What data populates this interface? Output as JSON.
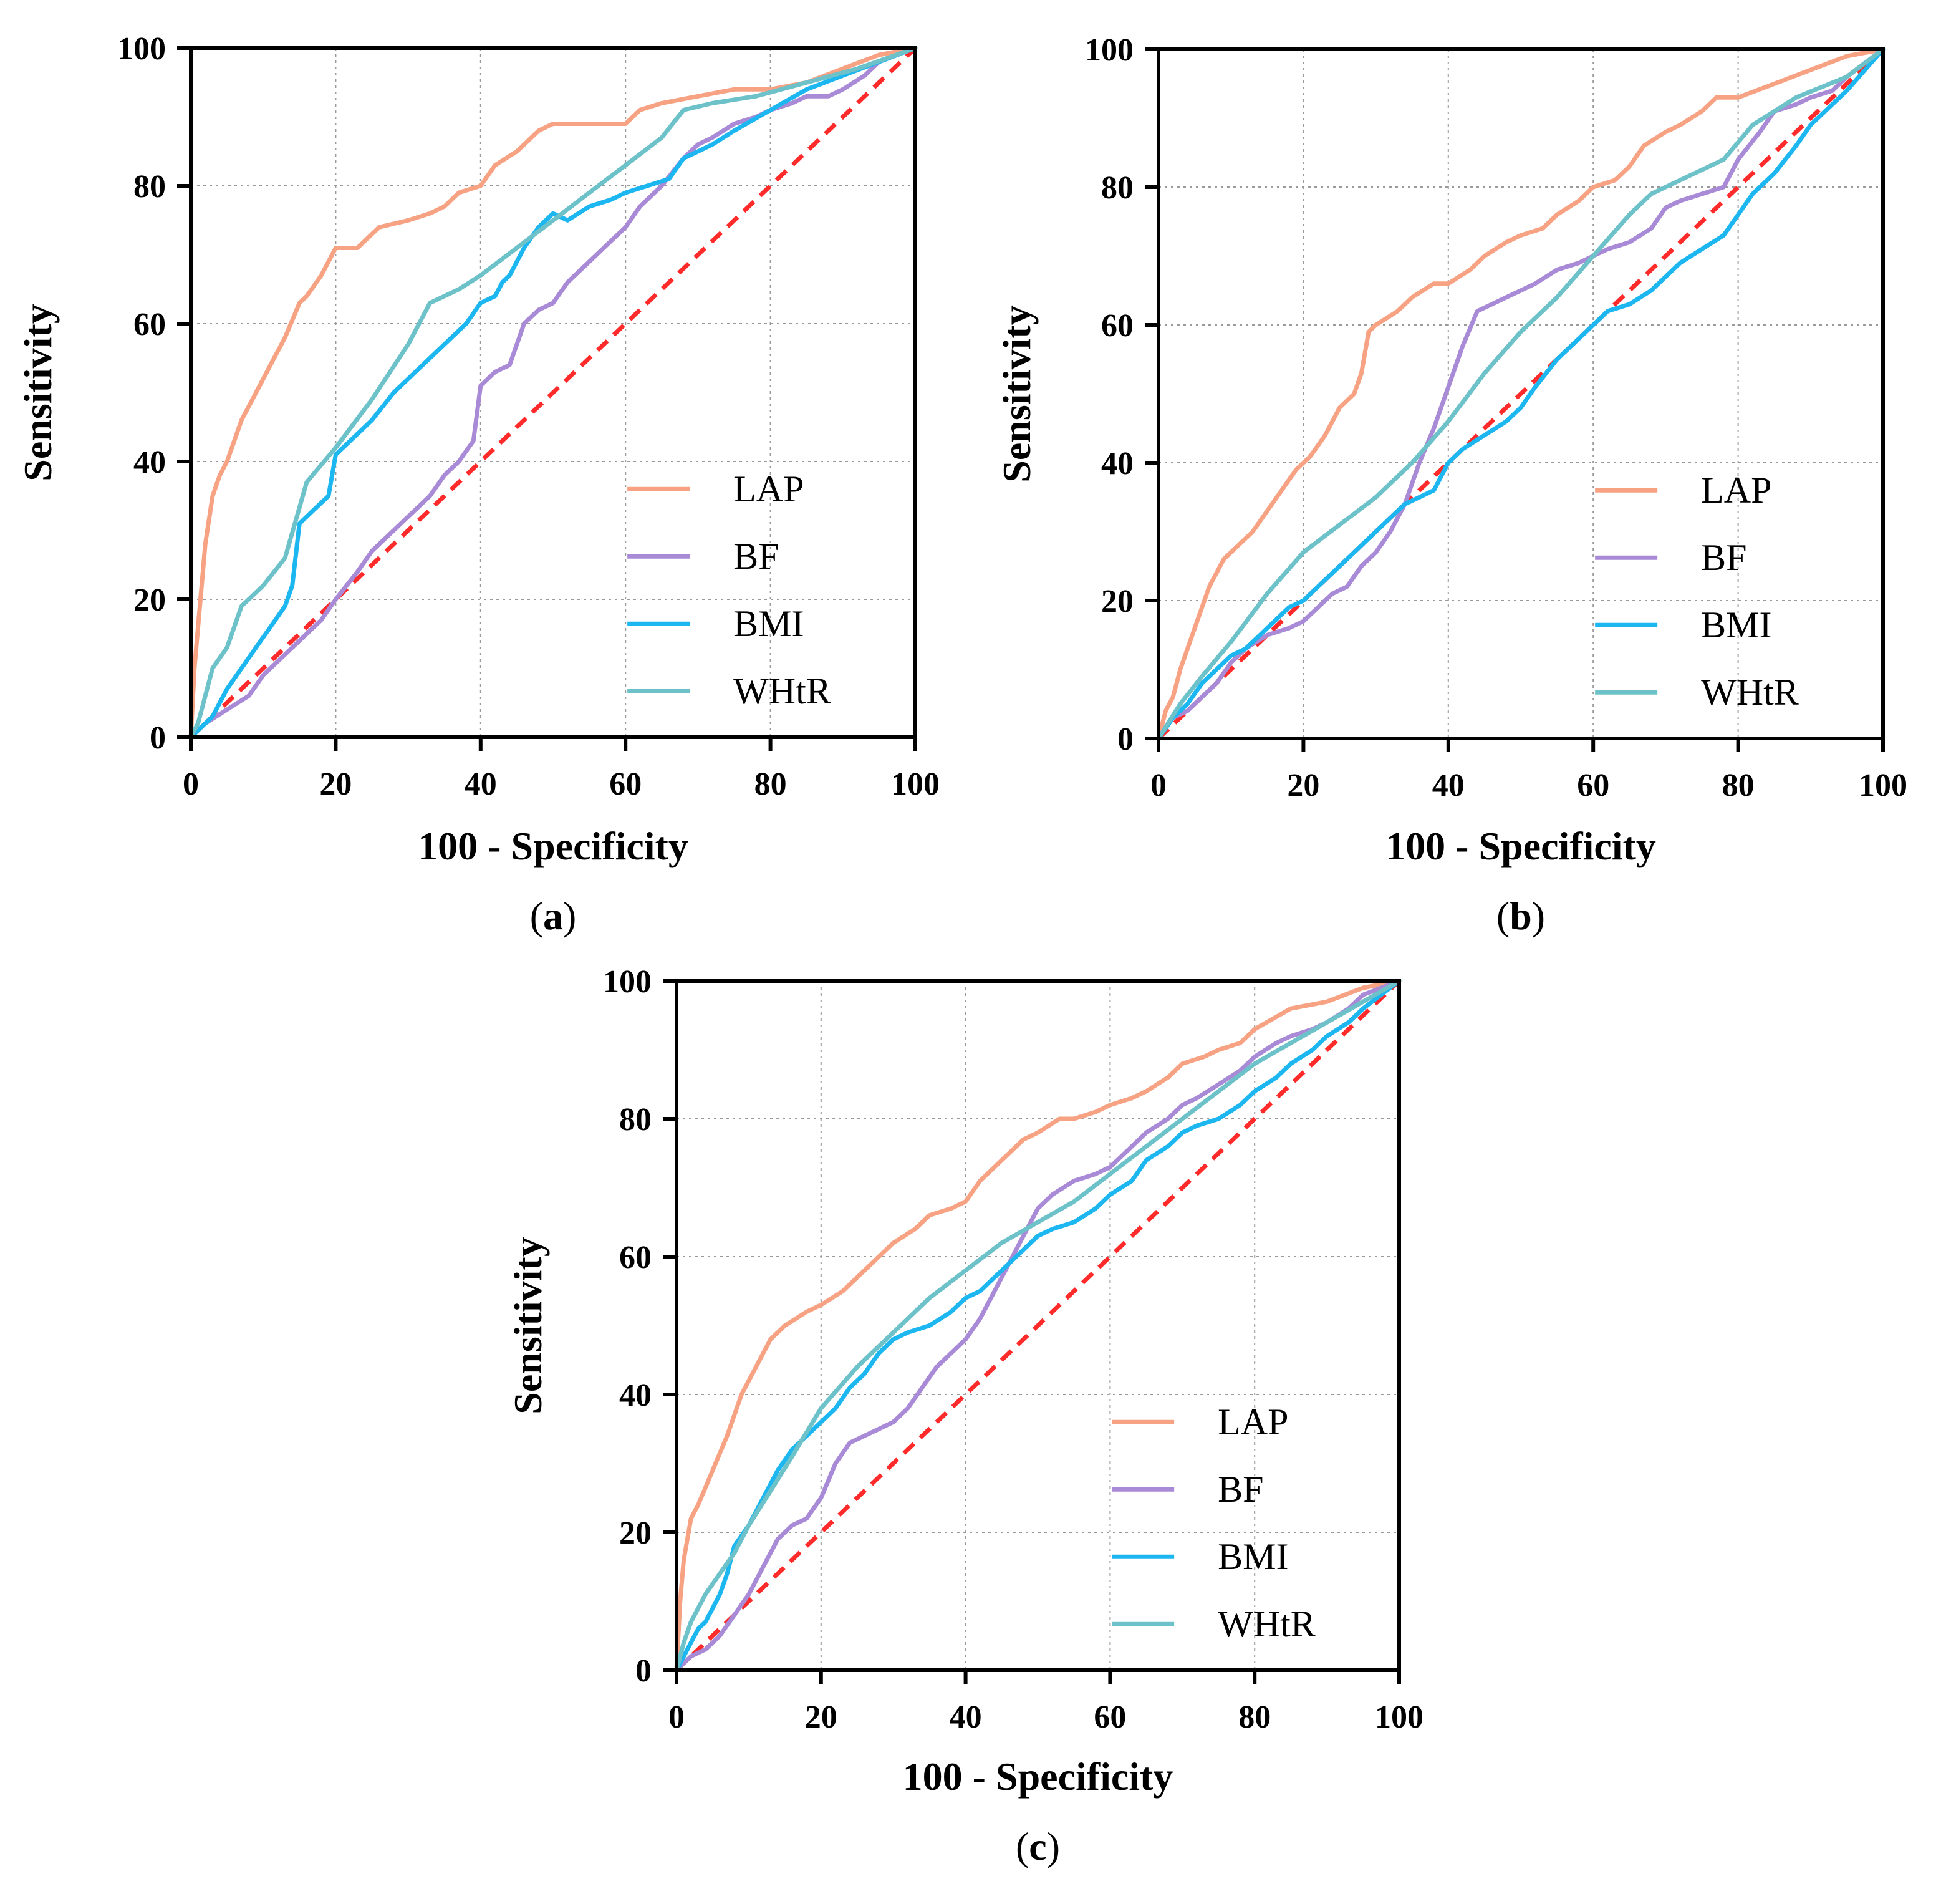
{
  "chart_data": [
    {
      "type": "line",
      "panel_label": "a",
      "xlabel": "100 - Specificity",
      "ylabel": "Sensitivity",
      "xlim": [
        0,
        100
      ],
      "ylim": [
        0,
        100
      ],
      "xticks": [
        0,
        20,
        40,
        60,
        80,
        100
      ],
      "yticks": [
        0,
        20,
        40,
        60,
        80,
        100
      ],
      "grid": true,
      "legend_position": "lower-right",
      "reference_line": {
        "x": [
          0,
          100
        ],
        "y": [
          0,
          100
        ],
        "color": "#ff2a2a",
        "style": "dashed"
      },
      "series": [
        {
          "name": "LAP",
          "color": "#f7a283",
          "x": [
            0,
            0.5,
            1,
            1.5,
            2,
            3,
            4,
            5,
            7,
            9,
            11,
            13,
            15,
            16,
            18,
            20,
            23,
            26,
            30,
            33,
            35,
            37,
            40,
            42,
            45,
            48,
            50,
            52,
            55,
            60,
            62,
            65,
            70,
            75,
            80,
            85,
            90,
            95,
            100
          ],
          "y": [
            0,
            10,
            16,
            22,
            28,
            35,
            38,
            40,
            46,
            50,
            54,
            58,
            63,
            64,
            67,
            71,
            71,
            74,
            75,
            76,
            77,
            79,
            80,
            83,
            85,
            88,
            89,
            89,
            89,
            89,
            91,
            92,
            93,
            94,
            94,
            95,
            97,
            99,
            100
          ]
        },
        {
          "name": "BF",
          "color": "#a98ad6",
          "x": [
            0,
            2,
            5,
            8,
            10,
            12,
            15,
            18,
            20,
            23,
            25,
            28,
            30,
            33,
            35,
            37,
            39,
            40,
            42,
            44,
            46,
            48,
            50,
            52,
            55,
            58,
            60,
            62,
            65,
            68,
            70,
            72,
            75,
            78,
            80,
            83,
            85,
            88,
            90,
            93,
            95,
            100
          ],
          "y": [
            0,
            2,
            4,
            6,
            9,
            11,
            14,
            17,
            20,
            24,
            27,
            30,
            32,
            35,
            38,
            40,
            43,
            51,
            53,
            54,
            60,
            62,
            63,
            66,
            69,
            72,
            74,
            77,
            80,
            84,
            86,
            87,
            89,
            90,
            91,
            92,
            93,
            93,
            94,
            96,
            98,
            100
          ]
        },
        {
          "name": "BMI",
          "color": "#1cb6f0",
          "x": [
            0,
            1,
            3,
            4,
            5,
            7,
            9,
            11,
            13,
            14,
            15,
            17,
            19,
            20,
            22,
            25,
            28,
            31,
            34,
            36,
            38,
            40,
            42,
            43,
            44,
            46,
            48,
            50,
            52,
            55,
            58,
            60,
            63,
            66,
            68,
            70,
            72,
            75,
            80,
            85,
            90,
            95,
            100
          ],
          "y": [
            0,
            1,
            3,
            5,
            7,
            10,
            13,
            16,
            19,
            22,
            31,
            33,
            35,
            41,
            43,
            46,
            50,
            53,
            56,
            58,
            60,
            63,
            64,
            66,
            67,
            71,
            74,
            76,
            75,
            77,
            78,
            79,
            80,
            81,
            84,
            85,
            86,
            88,
            91,
            94,
            96,
            98,
            100
          ]
        },
        {
          "name": "WHtR",
          "color": "#6cc2c8",
          "x": [
            0,
            1,
            3,
            5,
            7,
            10,
            13,
            16,
            20,
            25,
            30,
            33,
            37,
            40,
            45,
            50,
            55,
            60,
            65,
            68,
            72,
            78,
            85,
            92,
            100
          ],
          "y": [
            0,
            2,
            10,
            13,
            19,
            22,
            26,
            37,
            42,
            49,
            57,
            63,
            65,
            67,
            71,
            75,
            79,
            83,
            87,
            91,
            92,
            93,
            95,
            97,
            100
          ]
        }
      ]
    },
    {
      "type": "line",
      "panel_label": "b",
      "xlabel": "100 - Specificity",
      "ylabel": "Sensitivity",
      "xlim": [
        0,
        100
      ],
      "ylim": [
        0,
        100
      ],
      "xticks": [
        0,
        20,
        40,
        60,
        80,
        100
      ],
      "yticks": [
        0,
        20,
        40,
        60,
        80,
        100
      ],
      "grid": true,
      "legend_position": "lower-right",
      "reference_line": {
        "x": [
          0,
          100
        ],
        "y": [
          0,
          100
        ],
        "color": "#ff2a2a",
        "style": "dashed"
      },
      "series": [
        {
          "name": "LAP",
          "color": "#f7a283",
          "x": [
            0,
            1,
            2,
            3,
            5,
            7,
            9,
            11,
            13,
            15,
            17,
            19,
            21,
            23,
            25,
            27,
            28,
            29,
            30,
            33,
            35,
            38,
            40,
            43,
            45,
            48,
            50,
            53,
            55,
            58,
            60,
            63,
            65,
            67,
            70,
            72,
            75,
            77,
            80,
            85,
            90,
            95,
            100
          ],
          "y": [
            0,
            4,
            6,
            10,
            16,
            22,
            26,
            28,
            30,
            33,
            36,
            39,
            41,
            44,
            48,
            50,
            53,
            59,
            60,
            62,
            64,
            66,
            66,
            68,
            70,
            72,
            73,
            74,
            76,
            78,
            80,
            81,
            83,
            86,
            88,
            89,
            91,
            93,
            93,
            95,
            97,
            99,
            100
          ]
        },
        {
          "name": "BF",
          "color": "#a98ad6",
          "x": [
            0,
            2,
            4,
            6,
            8,
            10,
            12,
            15,
            18,
            20,
            22,
            24,
            26,
            28,
            30,
            32,
            34,
            36,
            38,
            40,
            42,
            44,
            46,
            48,
            50,
            52,
            55,
            58,
            60,
            62,
            65,
            68,
            70,
            72,
            75,
            78,
            80,
            83,
            85,
            88,
            90,
            93,
            95,
            100
          ],
          "y": [
            0,
            3,
            4,
            6,
            8,
            11,
            13,
            15,
            16,
            17,
            19,
            21,
            22,
            25,
            27,
            30,
            34,
            40,
            45,
            51,
            57,
            62,
            63,
            64,
            65,
            66,
            68,
            69,
            70,
            71,
            72,
            74,
            77,
            78,
            79,
            80,
            84,
            88,
            91,
            92,
            93,
            94,
            96,
            100
          ]
        },
        {
          "name": "BMI",
          "color": "#1cb6f0",
          "x": [
            0,
            2,
            4,
            6,
            8,
            10,
            12,
            14,
            16,
            18,
            20,
            22,
            24,
            26,
            28,
            30,
            32,
            34,
            36,
            38,
            40,
            42,
            45,
            48,
            50,
            52,
            55,
            58,
            60,
            62,
            65,
            68,
            70,
            72,
            75,
            78,
            80,
            82,
            85,
            88,
            90,
            92,
            95,
            100
          ],
          "y": [
            0,
            3,
            5,
            8,
            10,
            12,
            13,
            15,
            17,
            19,
            20,
            22,
            24,
            26,
            28,
            30,
            32,
            34,
            35,
            36,
            40,
            42,
            44,
            46,
            48,
            51,
            55,
            58,
            60,
            62,
            63,
            65,
            67,
            69,
            71,
            73,
            76,
            79,
            82,
            86,
            89,
            91,
            94,
            100
          ]
        },
        {
          "name": "WHtR",
          "color": "#6cc2c8",
          "x": [
            0,
            3,
            6,
            10,
            15,
            20,
            25,
            30,
            35,
            40,
            45,
            50,
            55,
            60,
            65,
            68,
            72,
            78,
            82,
            88,
            95,
            100
          ],
          "y": [
            0,
            5,
            9,
            14,
            21,
            27,
            31,
            35,
            40,
            46,
            53,
            59,
            64,
            70,
            76,
            79,
            81,
            84,
            89,
            93,
            96,
            100
          ]
        }
      ]
    },
    {
      "type": "line",
      "panel_label": "c",
      "xlabel": "100 - Specificity",
      "ylabel": "Sensitivity",
      "xlim": [
        0,
        100
      ],
      "ylim": [
        0,
        100
      ],
      "xticks": [
        0,
        20,
        40,
        60,
        80,
        100
      ],
      "yticks": [
        0,
        20,
        40,
        60,
        80,
        100
      ],
      "grid": true,
      "legend_position": "lower-right",
      "reference_line": {
        "x": [
          0,
          100
        ],
        "y": [
          0,
          100
        ],
        "color": "#ff2a2a",
        "style": "dashed"
      },
      "series": [
        {
          "name": "LAP",
          "color": "#f7a283",
          "x": [
            0,
            0.5,
            1,
            2,
            3,
            5,
            7,
            9,
            11,
            13,
            15,
            18,
            20,
            23,
            25,
            28,
            30,
            33,
            35,
            38,
            40,
            42,
            45,
            48,
            50,
            53,
            55,
            58,
            60,
            63,
            65,
            68,
            70,
            73,
            75,
            78,
            80,
            85,
            90,
            95,
            100
          ],
          "y": [
            0,
            10,
            16,
            22,
            24,
            29,
            34,
            40,
            44,
            48,
            50,
            52,
            53,
            55,
            57,
            60,
            62,
            64,
            66,
            67,
            68,
            71,
            74,
            77,
            78,
            80,
            80,
            81,
            82,
            83,
            84,
            86,
            88,
            89,
            90,
            91,
            93,
            96,
            97,
            99,
            100
          ]
        },
        {
          "name": "BF",
          "color": "#a98ad6",
          "x": [
            0,
            2,
            4,
            6,
            8,
            10,
            12,
            14,
            16,
            18,
            20,
            22,
            24,
            26,
            28,
            30,
            32,
            34,
            36,
            38,
            40,
            42,
            44,
            46,
            48,
            50,
            52,
            55,
            58,
            60,
            62,
            65,
            68,
            70,
            72,
            75,
            78,
            80,
            83,
            85,
            88,
            90,
            93,
            95,
            100
          ],
          "y": [
            0,
            2,
            3,
            5,
            8,
            11,
            15,
            19,
            21,
            22,
            25,
            30,
            33,
            34,
            35,
            36,
            38,
            41,
            44,
            46,
            48,
            51,
            55,
            59,
            63,
            67,
            69,
            71,
            72,
            73,
            75,
            78,
            80,
            82,
            83,
            85,
            87,
            89,
            91,
            92,
            93,
            94,
            96,
            98,
            100
          ]
        },
        {
          "name": "BMI",
          "color": "#1cb6f0",
          "x": [
            0,
            1,
            2,
            3,
            4,
            5,
            6,
            7,
            8,
            10,
            12,
            14,
            16,
            18,
            20,
            22,
            24,
            26,
            28,
            30,
            32,
            35,
            38,
            40,
            42,
            45,
            48,
            50,
            52,
            55,
            58,
            60,
            63,
            65,
            68,
            70,
            72,
            75,
            78,
            80,
            83,
            85,
            88,
            90,
            93,
            95,
            100
          ],
          "y": [
            0,
            2,
            4,
            6,
            7,
            9,
            11,
            14,
            18,
            21,
            25,
            29,
            32,
            34,
            36,
            38,
            41,
            43,
            46,
            48,
            49,
            50,
            52,
            54,
            55,
            58,
            61,
            63,
            64,
            65,
            67,
            69,
            71,
            74,
            76,
            78,
            79,
            80,
            82,
            84,
            86,
            88,
            90,
            92,
            94,
            96,
            100
          ]
        },
        {
          "name": "WHtR",
          "color": "#6cc2c8",
          "x": [
            0,
            1,
            2,
            4,
            6,
            8,
            10,
            13,
            16,
            20,
            25,
            30,
            35,
            40,
            45,
            50,
            55,
            60,
            65,
            70,
            75,
            80,
            85,
            90,
            95,
            100
          ],
          "y": [
            0,
            4,
            7,
            11,
            14,
            17,
            21,
            26,
            31,
            38,
            44,
            49,
            54,
            58,
            62,
            65,
            68,
            72,
            76,
            80,
            84,
            88,
            91,
            94,
            97,
            100
          ]
        }
      ]
    }
  ]
}
